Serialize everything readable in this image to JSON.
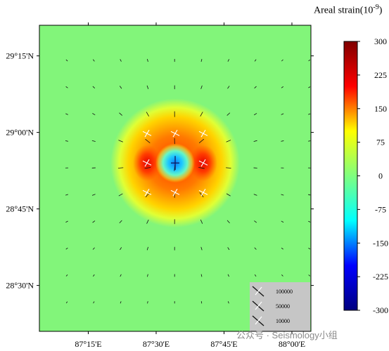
{
  "colorbar": {
    "title_text": "Areal strain(10",
    "title_exponent": "-9",
    "title_close": ")",
    "ticks": [
      300,
      225,
      150,
      75,
      0,
      -75,
      -150,
      -225,
      -300
    ],
    "tick_labels": [
      "300",
      "225",
      "150",
      "75",
      "0",
      "-75",
      "-150",
      "-225",
      "-300"
    ],
    "colors": [
      "#00007f",
      "#0000ff",
      "#00ffff",
      "#7fff7f",
      "#ffff00",
      "#ff0000",
      "#7f0000"
    ]
  },
  "map": {
    "lon_range": [
      87.07,
      88.07
    ],
    "lat_range": [
      28.35,
      29.35
    ],
    "x_ticks": [
      87.25,
      87.5,
      87.75,
      88.0
    ],
    "x_tick_labels": [
      "87°15'E",
      "87°30'E",
      "87°45'E",
      "88°00'E"
    ],
    "y_ticks": [
      29.25,
      29.0,
      28.75,
      28.5
    ],
    "y_tick_labels": [
      "29°15'N",
      "29°00'N",
      "28°45'N",
      "28°30'N"
    ],
    "source": {
      "lon": 87.57,
      "lat": 28.9
    },
    "background_color": "#82f57a"
  },
  "legend": {
    "labels": [
      "100000",
      "50000",
      "10000"
    ],
    "bg_color": "#c6c6c6"
  },
  "watermark": "公众号 · Seismology小组"
}
